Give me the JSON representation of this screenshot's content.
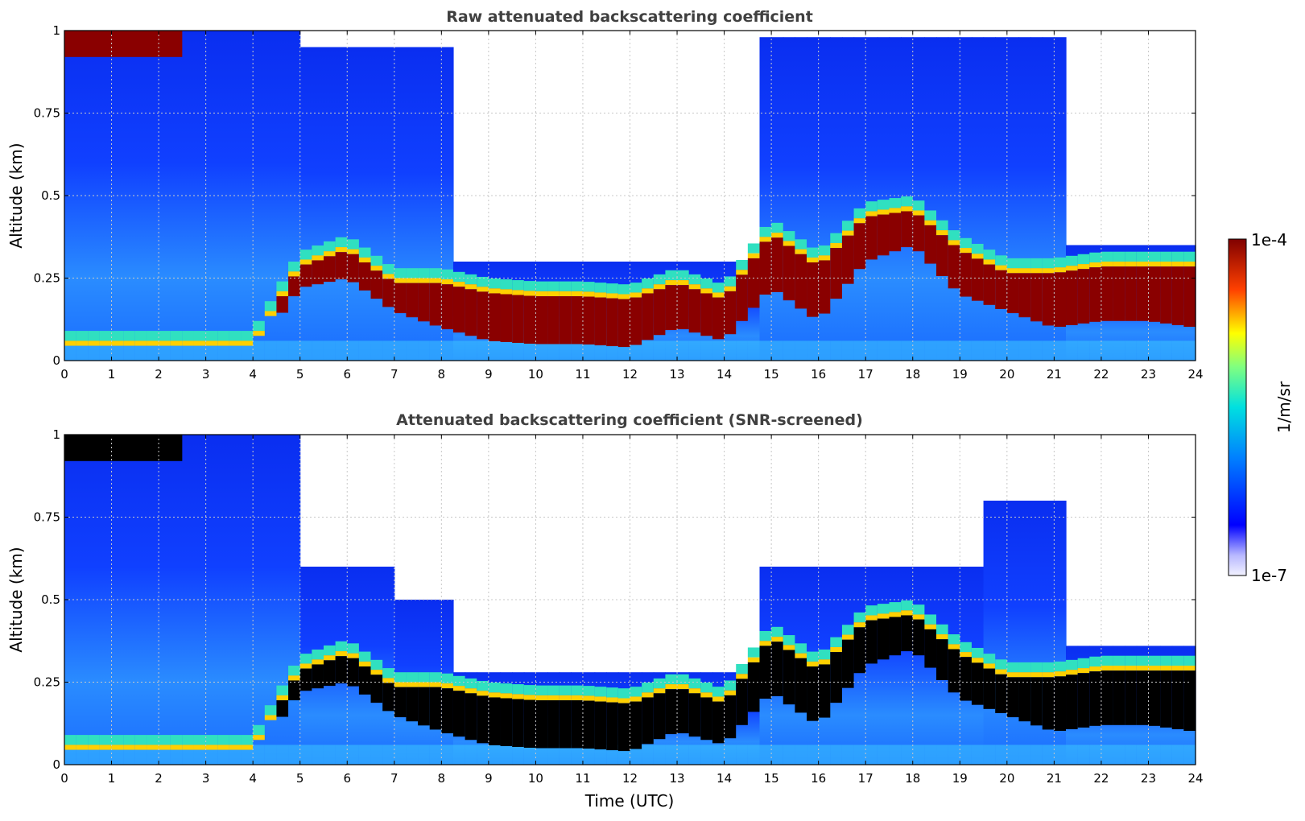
{
  "chart_data": [
    {
      "type": "heatmap",
      "title": "Raw attenuated backscattering coefficient",
      "xlabel": "",
      "ylabel": "Altitude (km)",
      "xlim": [
        0,
        24
      ],
      "ylim": [
        0,
        1
      ],
      "xticks": [
        "0",
        "1",
        "2",
        "3",
        "4",
        "5",
        "6",
        "7",
        "8",
        "9",
        "10",
        "11",
        "12",
        "13",
        "14",
        "15",
        "16",
        "17",
        "18",
        "19",
        "20",
        "21",
        "22",
        "23",
        "24"
      ],
      "yticks": [
        "0",
        "0.25",
        "0.5",
        "0.75",
        "1"
      ],
      "grid": true,
      "screened": false,
      "cloud_layer": {
        "hours": [
          0,
          2,
          4,
          5,
          6,
          7,
          8,
          9,
          10,
          11,
          12,
          13,
          14,
          15,
          16,
          17,
          18,
          19,
          20,
          21,
          22,
          23,
          24
        ],
        "top_km": [
          0.06,
          0.06,
          0.06,
          0.3,
          0.35,
          0.25,
          0.25,
          0.22,
          0.21,
          0.21,
          0.2,
          0.25,
          0.2,
          0.4,
          0.3,
          0.45,
          0.47,
          0.35,
          0.28,
          0.28,
          0.3,
          0.3,
          0.3
        ],
        "base_km": [
          0.02,
          0.02,
          0.02,
          0.22,
          0.25,
          0.15,
          0.1,
          0.06,
          0.05,
          0.05,
          0.04,
          0.1,
          0.06,
          0.22,
          0.12,
          0.3,
          0.35,
          0.2,
          0.15,
          0.1,
          0.12,
          0.12,
          0.1
        ]
      }
    },
    {
      "type": "heatmap",
      "title": "Attenuated backscattering coefficient (SNR-screened)",
      "xlabel": "Time (UTC)",
      "ylabel": "Altitude (km)",
      "xlim": [
        0,
        24
      ],
      "ylim": [
        0,
        1
      ],
      "xticks": [
        "0",
        "1",
        "2",
        "3",
        "4",
        "5",
        "6",
        "7",
        "8",
        "9",
        "10",
        "11",
        "12",
        "13",
        "14",
        "15",
        "16",
        "17",
        "18",
        "19",
        "20",
        "21",
        "22",
        "23",
        "24"
      ],
      "yticks": [
        "0",
        "0.25",
        "0.5",
        "0.75",
        "1"
      ],
      "grid": true,
      "screened": true,
      "cloud_layer": {
        "hours": [
          0,
          2,
          4,
          5,
          6,
          7,
          8,
          9,
          10,
          11,
          12,
          13,
          14,
          15,
          16,
          17,
          18,
          19,
          20,
          21,
          22,
          23,
          24
        ],
        "top_km": [
          0.06,
          0.06,
          0.06,
          0.3,
          0.35,
          0.25,
          0.25,
          0.22,
          0.21,
          0.21,
          0.2,
          0.25,
          0.2,
          0.4,
          0.3,
          0.45,
          0.47,
          0.35,
          0.28,
          0.28,
          0.3,
          0.3,
          0.3
        ],
        "base_km": [
          0.02,
          0.02,
          0.02,
          0.22,
          0.25,
          0.15,
          0.1,
          0.06,
          0.05,
          0.05,
          0.04,
          0.1,
          0.06,
          0.22,
          0.12,
          0.3,
          0.35,
          0.2,
          0.15,
          0.1,
          0.12,
          0.12,
          0.1
        ]
      }
    }
  ],
  "colorbar": {
    "label": "1/m/sr",
    "max_label": "1e-4",
    "min_label": "1e-7",
    "colormap": "jet"
  }
}
